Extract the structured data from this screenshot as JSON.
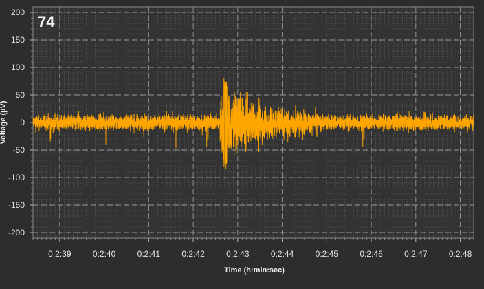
{
  "chart_data": {
    "type": "line",
    "channel_label": "74",
    "xlabel": "Time (h:min:sec)",
    "ylabel": "Voltage (µV)",
    "ylim": [
      -210,
      210
    ],
    "xlim_seconds_into_minute_2": [
      38.4,
      48.3
    ],
    "y_ticks": [
      "200",
      "150",
      "100",
      "50",
      "0",
      "-50",
      "-100",
      "-150",
      "-200"
    ],
    "x_ticks": [
      "0:2:39",
      "0:2:40",
      "0:2:41",
      "0:2:42",
      "0:2:43",
      "0:2:44",
      "0:2:45",
      "0:2:46",
      "0:2:47",
      "0:2:48"
    ],
    "grid": true,
    "series": [
      {
        "color": "#ffa500",
        "baseline_band_uV": [
          -20,
          20
        ],
        "burst_peak_uV": {
          "time": "0:2:42.7",
          "max": 80,
          "min": -85
        },
        "active_period": [
          "0:2:42.6",
          "0:2:44.8"
        ]
      }
    ]
  },
  "colors": {
    "background": "#2d2d2d",
    "plot_background": "#333333",
    "grid": "#6a6a6a",
    "trace": "#ffa500",
    "text": "#e6e6e6"
  }
}
